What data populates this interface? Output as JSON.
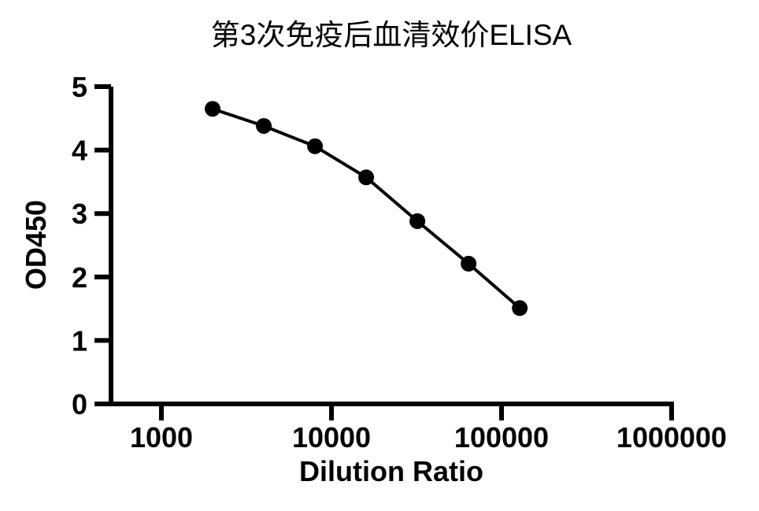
{
  "chart_data": {
    "type": "line",
    "title": "第3次免疫后血清效价ELISA",
    "xlabel": "Dilution Ratio",
    "ylabel": "OD450",
    "x_scale": "log10",
    "x": [
      2000,
      4000,
      8000,
      16000,
      32000,
      64000,
      128000
    ],
    "values": [
      4.65,
      4.38,
      4.06,
      3.57,
      2.88,
      2.21,
      1.51
    ],
    "x_ticks": [
      1000,
      10000,
      100000,
      1000000
    ],
    "x_tick_labels": [
      "1000",
      "10000",
      "100000",
      "1000000"
    ],
    "y_ticks": [
      0,
      1,
      2,
      3,
      4,
      5
    ],
    "y_tick_labels": [
      "0",
      "1",
      "2",
      "3",
      "4",
      "5"
    ],
    "xlim": [
      500,
      1000000
    ],
    "ylim": [
      0,
      5
    ],
    "grid": false,
    "legend": "none",
    "marker": "filled-circle",
    "line_color": "#000000",
    "marker_color": "#000000",
    "axis_color": "#000000",
    "background_color": "#ffffff"
  }
}
